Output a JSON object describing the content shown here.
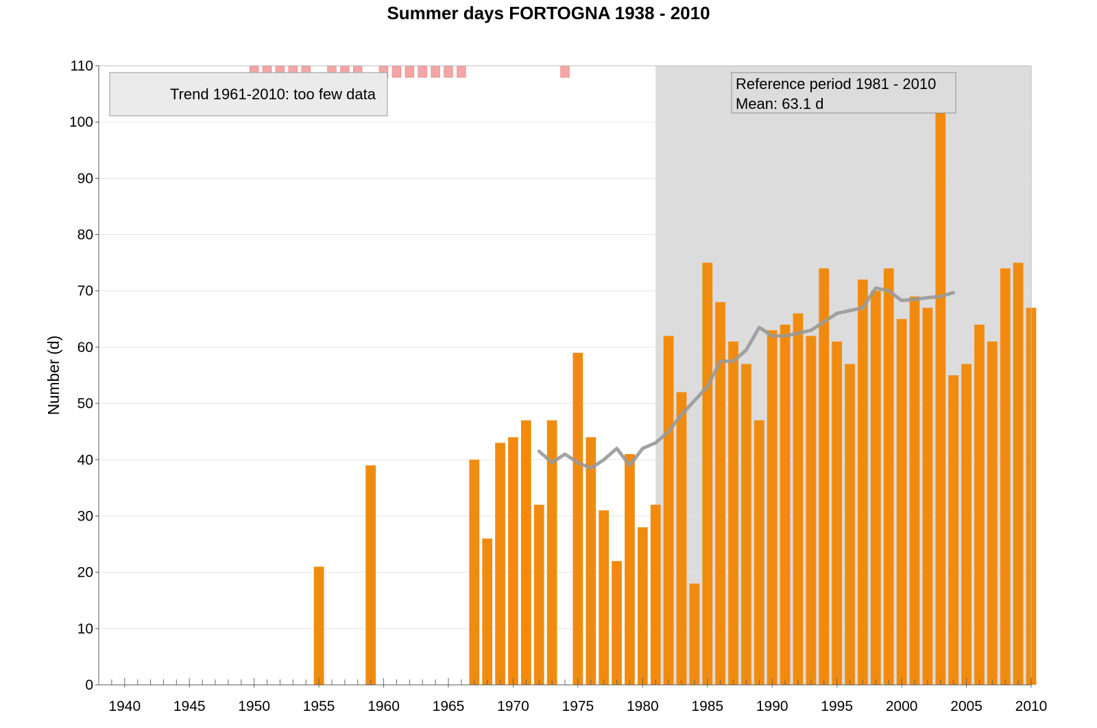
{
  "chart_data": {
    "type": "bar",
    "title": "Summer days FORTOGNA 1938 - 2010",
    "ylabel": "Number (d)",
    "xlabel": "",
    "xlim": [
      1938,
      2010
    ],
    "ylim": [
      0,
      110
    ],
    "x_ticks": [
      1940,
      1945,
      1950,
      1955,
      1960,
      1965,
      1970,
      1975,
      1980,
      1985,
      1990,
      1995,
      2000,
      2005,
      2010
    ],
    "y_ticks": [
      0,
      10,
      20,
      30,
      40,
      50,
      60,
      70,
      80,
      90,
      100,
      110
    ],
    "grid": true,
    "bar_color": "#f18b0f",
    "highlight_color": "#f2b97e",
    "series": [
      {
        "name": "Summer days",
        "x": [
          1955,
          1959,
          1967,
          1968,
          1969,
          1970,
          1971,
          1972,
          1973,
          1975,
          1976,
          1977,
          1978,
          1979,
          1980,
          1981,
          1982,
          1983,
          1984,
          1985,
          1986,
          1987,
          1988,
          1989,
          1990,
          1991,
          1992,
          1993,
          1994,
          1995,
          1996,
          1997,
          1998,
          1999,
          2000,
          2001,
          2002,
          2003,
          2004,
          2005,
          2006,
          2007,
          2008,
          2009,
          2010
        ],
        "values": [
          21,
          39,
          40,
          26,
          43,
          44,
          47,
          32,
          47,
          59,
          44,
          31,
          22,
          41,
          28,
          32,
          62,
          52,
          18,
          75,
          68,
          61,
          57,
          47,
          63,
          64,
          66,
          62,
          74,
          61,
          57,
          72,
          70,
          74,
          65,
          69,
          67,
          104,
          55,
          57,
          64,
          61,
          74,
          75,
          67
        ]
      },
      {
        "name": "Moving average",
        "type": "line",
        "color": "#999999",
        "x": [
          1972,
          1973,
          1974,
          1975,
          1976,
          1977,
          1978,
          1979,
          1980,
          1981,
          1982,
          1983,
          1984,
          1985,
          1986,
          1987,
          1988,
          1989,
          1990,
          1991,
          1992,
          1993,
          1994,
          1995,
          1996,
          1997,
          1998,
          1999,
          2000,
          2001,
          2002,
          2003,
          2004
        ],
        "values": [
          41.5,
          39.5,
          41,
          39.5,
          38.5,
          40,
          42,
          39,
          42,
          43,
          45,
          48,
          50.5,
          53,
          57.5,
          57.5,
          59.5,
          63.5,
          62,
          62,
          62.5,
          63,
          64.5,
          66,
          66.5,
          67,
          70.5,
          70,
          68.3,
          68.5,
          68.8,
          69,
          69.7
        ]
      }
    ],
    "missing_years": [
      1950,
      1951,
      1952,
      1953,
      1954,
      1956,
      1957,
      1958,
      1960,
      1961,
      1962,
      1963,
      1964,
      1965,
      1966,
      1974
    ],
    "missing_marker_color": "#f4a6a6",
    "reference_period": {
      "start": 1981,
      "end": 2010,
      "shade_color": "#dcdcdc"
    },
    "highlighted_year": 2003,
    "annotations": {
      "trend": "Trend 1961-2010: too few data",
      "reference_line1": "Reference period 1981 - 2010",
      "reference_line2": "Mean: 63.1 d"
    }
  }
}
